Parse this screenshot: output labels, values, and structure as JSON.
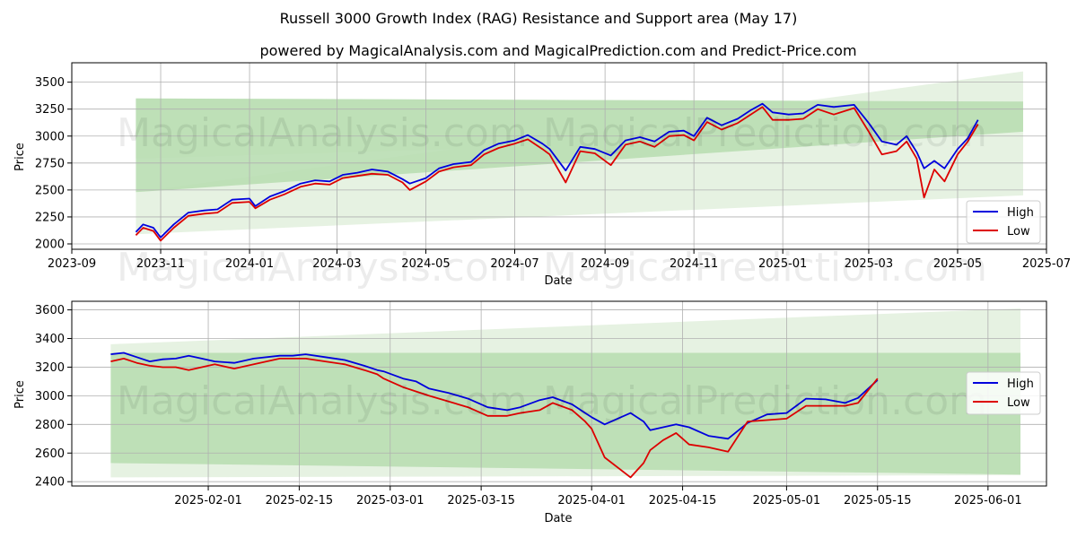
{
  "title": "Russell 3000 Growth Index (RAG) Resistance and Support area (May 17)",
  "subtitle": "powered by MagicalAnalysis.com and MagicalPrediction.com and Predict-Price.com",
  "watermark": "MagicalAnalysis.com",
  "watermark2": "MagicalPrediction.com",
  "colors": {
    "high": "#0000dd",
    "low": "#dd0000",
    "band_outer": "#e3f1df",
    "band_inner": "#b9deb3"
  },
  "chart_data": [
    {
      "type": "line",
      "xlabel": "Date",
      "ylabel": "Price",
      "xlim": [
        "2023-09-01",
        "2025-07-01"
      ],
      "ylim": [
        1950,
        3680
      ],
      "grid": true,
      "legend_position": "lower-right",
      "x_ticks": [
        "2023-09-01",
        "2023-11-01",
        "2024-01-01",
        "2024-03-01",
        "2024-05-01",
        "2024-07-01",
        "2024-09-01",
        "2024-11-01",
        "2025-01-01",
        "2025-03-01",
        "2025-05-01",
        "2025-07-01"
      ],
      "x_tick_labels": [
        "2023-09",
        "2023-11",
        "2024-01",
        "2024-03",
        "2024-05",
        "2024-07",
        "2024-09",
        "2024-11",
        "2025-01",
        "2025-03",
        "2025-05",
        "2025-07"
      ],
      "y_ticks": [
        2000,
        2250,
        2500,
        2750,
        3000,
        3250,
        3500
      ],
      "y_tick_labels": [
        "2000",
        "2250",
        "2500",
        "2750",
        "3000",
        "3250",
        "3500"
      ],
      "bands": [
        {
          "x": [
            "2023-10-15",
            "2025-06-15"
          ],
          "upper": [
            3350,
            3320
          ],
          "lower": [
            2790,
            3040
          ],
          "shade": "outer"
        },
        {
          "x": [
            "2023-10-15",
            "2025-06-15"
          ],
          "upper": [
            2480,
            3600
          ],
          "lower": [
            2090,
            2450
          ],
          "shade": "outer"
        },
        {
          "x": [
            "2023-10-15",
            "2025-06-15"
          ],
          "upper": [
            3350,
            3320
          ],
          "lower": [
            2480,
            3040
          ],
          "shade": "inner"
        }
      ],
      "series": [
        {
          "name": "High",
          "x": [
            "2023-10-15",
            "2023-10-20",
            "2023-10-27",
            "2023-11-01",
            "2023-11-10",
            "2023-11-20",
            "2023-12-01",
            "2023-12-10",
            "2023-12-20",
            "2024-01-01",
            "2024-01-05",
            "2024-01-15",
            "2024-01-25",
            "2024-02-05",
            "2024-02-15",
            "2024-02-25",
            "2024-03-05",
            "2024-03-15",
            "2024-03-25",
            "2024-04-05",
            "2024-04-15",
            "2024-04-20",
            "2024-05-01",
            "2024-05-10",
            "2024-05-20",
            "2024-06-01",
            "2024-06-10",
            "2024-06-20",
            "2024-07-01",
            "2024-07-10",
            "2024-07-20",
            "2024-07-25",
            "2024-08-05",
            "2024-08-15",
            "2024-08-25",
            "2024-09-05",
            "2024-09-15",
            "2024-09-25",
            "2024-10-05",
            "2024-10-15",
            "2024-10-25",
            "2024-11-01",
            "2024-11-10",
            "2024-11-20",
            "2024-12-01",
            "2024-12-10",
            "2024-12-18",
            "2024-12-25",
            "2025-01-05",
            "2025-01-15",
            "2025-01-25",
            "2025-02-05",
            "2025-02-19",
            "2025-03-01",
            "2025-03-10",
            "2025-03-20",
            "2025-03-27",
            "2025-04-03",
            "2025-04-08",
            "2025-04-15",
            "2025-04-22",
            "2025-05-01",
            "2025-05-08",
            "2025-05-15"
          ],
          "values": [
            2110,
            2180,
            2150,
            2060,
            2180,
            2290,
            2310,
            2320,
            2410,
            2420,
            2350,
            2440,
            2490,
            2560,
            2590,
            2580,
            2640,
            2660,
            2690,
            2670,
            2600,
            2560,
            2610,
            2700,
            2740,
            2760,
            2870,
            2930,
            2960,
            3010,
            2930,
            2880,
            2680,
            2900,
            2880,
            2820,
            2960,
            2990,
            2950,
            3040,
            3050,
            3000,
            3170,
            3100,
            3160,
            3240,
            3300,
            3220,
            3200,
            3210,
            3290,
            3270,
            3290,
            3120,
            2950,
            2920,
            3000,
            2850,
            2700,
            2770,
            2700,
            2880,
            2980,
            3150
          ]
        },
        {
          "name": "Low",
          "x": [
            "2023-10-15",
            "2023-10-20",
            "2023-10-27",
            "2023-11-01",
            "2023-11-10",
            "2023-11-20",
            "2023-12-01",
            "2023-12-10",
            "2023-12-20",
            "2024-01-01",
            "2024-01-05",
            "2024-01-15",
            "2024-01-25",
            "2024-02-05",
            "2024-02-15",
            "2024-02-25",
            "2024-03-05",
            "2024-03-15",
            "2024-03-25",
            "2024-04-05",
            "2024-04-15",
            "2024-04-20",
            "2024-05-01",
            "2024-05-10",
            "2024-05-20",
            "2024-06-01",
            "2024-06-10",
            "2024-06-20",
            "2024-07-01",
            "2024-07-10",
            "2024-07-20",
            "2024-07-25",
            "2024-08-05",
            "2024-08-15",
            "2024-08-25",
            "2024-09-05",
            "2024-09-15",
            "2024-09-25",
            "2024-10-05",
            "2024-10-15",
            "2024-10-25",
            "2024-11-01",
            "2024-11-10",
            "2024-11-20",
            "2024-12-01",
            "2024-12-10",
            "2024-12-18",
            "2024-12-25",
            "2025-01-05",
            "2025-01-15",
            "2025-01-25",
            "2025-02-05",
            "2025-02-19",
            "2025-03-01",
            "2025-03-10",
            "2025-03-20",
            "2025-03-27",
            "2025-04-03",
            "2025-04-08",
            "2025-04-15",
            "2025-04-22",
            "2025-05-01",
            "2025-05-08",
            "2025-05-15"
          ],
          "values": [
            2080,
            2150,
            2120,
            2030,
            2150,
            2260,
            2280,
            2290,
            2380,
            2390,
            2330,
            2410,
            2460,
            2530,
            2560,
            2550,
            2610,
            2630,
            2650,
            2640,
            2570,
            2500,
            2580,
            2670,
            2710,
            2730,
            2830,
            2890,
            2930,
            2970,
            2880,
            2830,
            2570,
            2860,
            2840,
            2730,
            2920,
            2950,
            2900,
            3000,
            3010,
            2960,
            3130,
            3060,
            3120,
            3200,
            3270,
            3150,
            3150,
            3160,
            3250,
            3200,
            3260,
            3040,
            2830,
            2860,
            2950,
            2790,
            2430,
            2690,
            2580,
            2830,
            2950,
            3110
          ]
        }
      ]
    },
    {
      "type": "line",
      "xlabel": "Date",
      "ylabel": "Price",
      "xlim": [
        "2025-01-11",
        "2025-06-10"
      ],
      "ylim": [
        2370,
        3660
      ],
      "grid": true,
      "legend_position": "center-right",
      "x_ticks": [
        "2025-02-01",
        "2025-02-15",
        "2025-03-01",
        "2025-03-15",
        "2025-04-01",
        "2025-04-15",
        "2025-05-01",
        "2025-05-15",
        "2025-06-01"
      ],
      "x_tick_labels": [
        "2025-02-01",
        "2025-02-15",
        "2025-03-01",
        "2025-03-15",
        "2025-04-01",
        "2025-04-15",
        "2025-05-01",
        "2025-05-15",
        "2025-06-01"
      ],
      "y_ticks": [
        2400,
        2600,
        2800,
        3000,
        3200,
        3400,
        3600
      ],
      "y_tick_labels": [
        "2400",
        "2600",
        "2800",
        "3000",
        "3200",
        "3400",
        "3600"
      ],
      "bands": [
        {
          "x": [
            "2025-01-17",
            "2025-06-06"
          ],
          "upper": [
            3360,
            3610
          ],
          "lower": [
            2430,
            2445
          ],
          "shade": "outer"
        },
        {
          "x": [
            "2025-01-17",
            "2025-06-06"
          ],
          "upper": [
            3300,
            3300
          ],
          "lower": [
            2530,
            2450
          ],
          "shade": "inner"
        }
      ],
      "series": [
        {
          "name": "High",
          "x": [
            "2025-01-17",
            "2025-01-19",
            "2025-01-21",
            "2025-01-23",
            "2025-01-25",
            "2025-01-27",
            "2025-01-29",
            "2025-01-31",
            "2025-02-02",
            "2025-02-05",
            "2025-02-08",
            "2025-02-12",
            "2025-02-14",
            "2025-02-16",
            "2025-02-19",
            "2025-02-22",
            "2025-02-25",
            "2025-02-27",
            "2025-02-28",
            "2025-03-03",
            "2025-03-05",
            "2025-03-07",
            "2025-03-10",
            "2025-03-13",
            "2025-03-16",
            "2025-03-19",
            "2025-03-21",
            "2025-03-24",
            "2025-03-26",
            "2025-03-29",
            "2025-03-31",
            "2025-04-01",
            "2025-04-03",
            "2025-04-07",
            "2025-04-09",
            "2025-04-10",
            "2025-04-12",
            "2025-04-14",
            "2025-04-16",
            "2025-04-19",
            "2025-04-22",
            "2025-04-25",
            "2025-04-28",
            "2025-05-01",
            "2025-05-04",
            "2025-05-07",
            "2025-05-10",
            "2025-05-12",
            "2025-05-15"
          ],
          "values": [
            3290,
            3300,
            3270,
            3240,
            3255,
            3260,
            3280,
            3260,
            3240,
            3230,
            3260,
            3280,
            3280,
            3290,
            3270,
            3250,
            3210,
            3180,
            3170,
            3120,
            3100,
            3050,
            3020,
            2980,
            2920,
            2900,
            2920,
            2970,
            2990,
            2940,
            2880,
            2850,
            2800,
            2880,
            2820,
            2760,
            2780,
            2800,
            2780,
            2720,
            2700,
            2810,
            2870,
            2880,
            2980,
            2975,
            2950,
            2985,
            3110
          ]
        },
        {
          "name": "Low",
          "x": [
            "2025-01-17",
            "2025-01-19",
            "2025-01-21",
            "2025-01-23",
            "2025-01-25",
            "2025-01-27",
            "2025-01-29",
            "2025-01-31",
            "2025-02-02",
            "2025-02-05",
            "2025-02-08",
            "2025-02-12",
            "2025-02-14",
            "2025-02-16",
            "2025-02-19",
            "2025-02-22",
            "2025-02-25",
            "2025-02-27",
            "2025-02-28",
            "2025-03-03",
            "2025-03-05",
            "2025-03-07",
            "2025-03-10",
            "2025-03-13",
            "2025-03-16",
            "2025-03-19",
            "2025-03-21",
            "2025-03-24",
            "2025-03-26",
            "2025-03-29",
            "2025-03-31",
            "2025-04-01",
            "2025-04-03",
            "2025-04-07",
            "2025-04-09",
            "2025-04-10",
            "2025-04-12",
            "2025-04-14",
            "2025-04-16",
            "2025-04-19",
            "2025-04-22",
            "2025-04-25",
            "2025-04-28",
            "2025-05-01",
            "2025-05-04",
            "2025-05-07",
            "2025-05-10",
            "2025-05-12",
            "2025-05-15"
          ],
          "values": [
            3240,
            3260,
            3230,
            3210,
            3200,
            3200,
            3180,
            3200,
            3220,
            3190,
            3220,
            3260,
            3260,
            3260,
            3240,
            3220,
            3180,
            3150,
            3120,
            3060,
            3030,
            3000,
            2960,
            2920,
            2860,
            2860,
            2880,
            2900,
            2950,
            2900,
            2820,
            2770,
            2570,
            2430,
            2530,
            2620,
            2690,
            2740,
            2660,
            2640,
            2610,
            2820,
            2830,
            2840,
            2930,
            2930,
            2930,
            2950,
            3120
          ]
        }
      ]
    }
  ]
}
